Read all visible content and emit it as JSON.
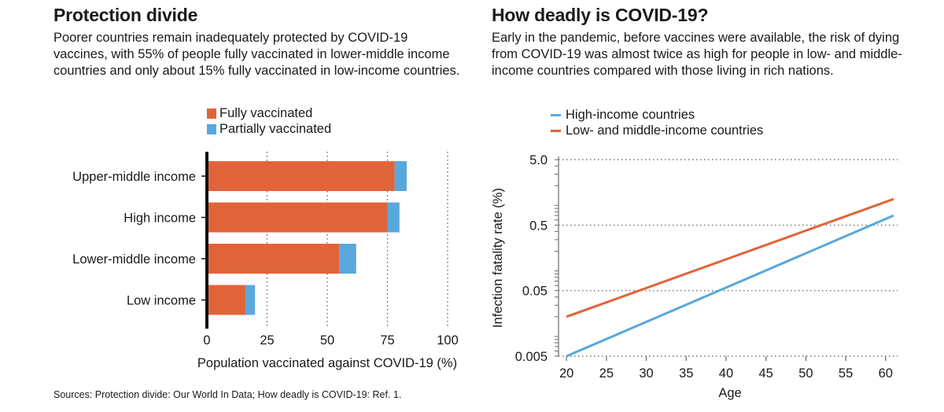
{
  "colors": {
    "fully": "#e0643a",
    "partially": "#59a8dc",
    "high_income": "#59a8dc",
    "low_middle_income": "#e0643a"
  },
  "left": {
    "title": "Protection divide",
    "subtitle": "Poorer countries remain inadequately protected by COVID-19 vaccines, with 55% of people fully vaccinated in lower-middle income countries and only about 15% fully vaccinated in low-income countries.",
    "legend": {
      "fully": "Fully vaccinated",
      "partially": "Partially vaccinated"
    }
  },
  "right": {
    "title": "How deadly is COVID-19?",
    "subtitle": "Early in the pandemic, before vaccines were available, the risk of dying from COVID-19 was almost twice as high for people in low- and middle-income countries compared with those living in rich nations.",
    "legend": {
      "high": "High-income countries",
      "low": "Low- and middle-income countries"
    }
  },
  "source": "Sources: Protection divide: Our World In Data; How deadly is COVID-19: Ref. 1.",
  "chart_data": [
    {
      "type": "bar",
      "orientation": "horizontal",
      "stacked": true,
      "categories": [
        "Upper-middle income",
        "High income",
        "Lower-middle income",
        "Low income"
      ],
      "series": [
        {
          "name": "Fully vaccinated",
          "values": [
            78,
            75,
            55,
            16
          ]
        },
        {
          "name": "Partially vaccinated",
          "values": [
            5,
            5,
            7,
            4
          ]
        }
      ],
      "xlabel": "Population vaccinated against COVID-19 (%)",
      "xlim": [
        0,
        100
      ],
      "xticks": [
        0,
        25,
        50,
        75,
        100
      ],
      "grid": "vertical dotted"
    },
    {
      "type": "line",
      "x": [
        20,
        61
      ],
      "series": [
        {
          "name": "High-income countries",
          "values": [
            0.005,
            0.7
          ]
        },
        {
          "name": "Low- and middle-income countries",
          "values": [
            0.02,
            1.25
          ]
        }
      ],
      "xlabel": "Age",
      "ylabel": "Infection fatality rate (%)",
      "xlim": [
        19,
        61.5
      ],
      "xticks": [
        20,
        25,
        30,
        35,
        40,
        45,
        50,
        55,
        60
      ],
      "ylim": [
        0.005,
        5.0
      ],
      "yticks": [
        "0.005",
        "0.05",
        "0.5",
        "5.0"
      ],
      "yscale": "log",
      "grid": "horizontal dotted"
    }
  ]
}
